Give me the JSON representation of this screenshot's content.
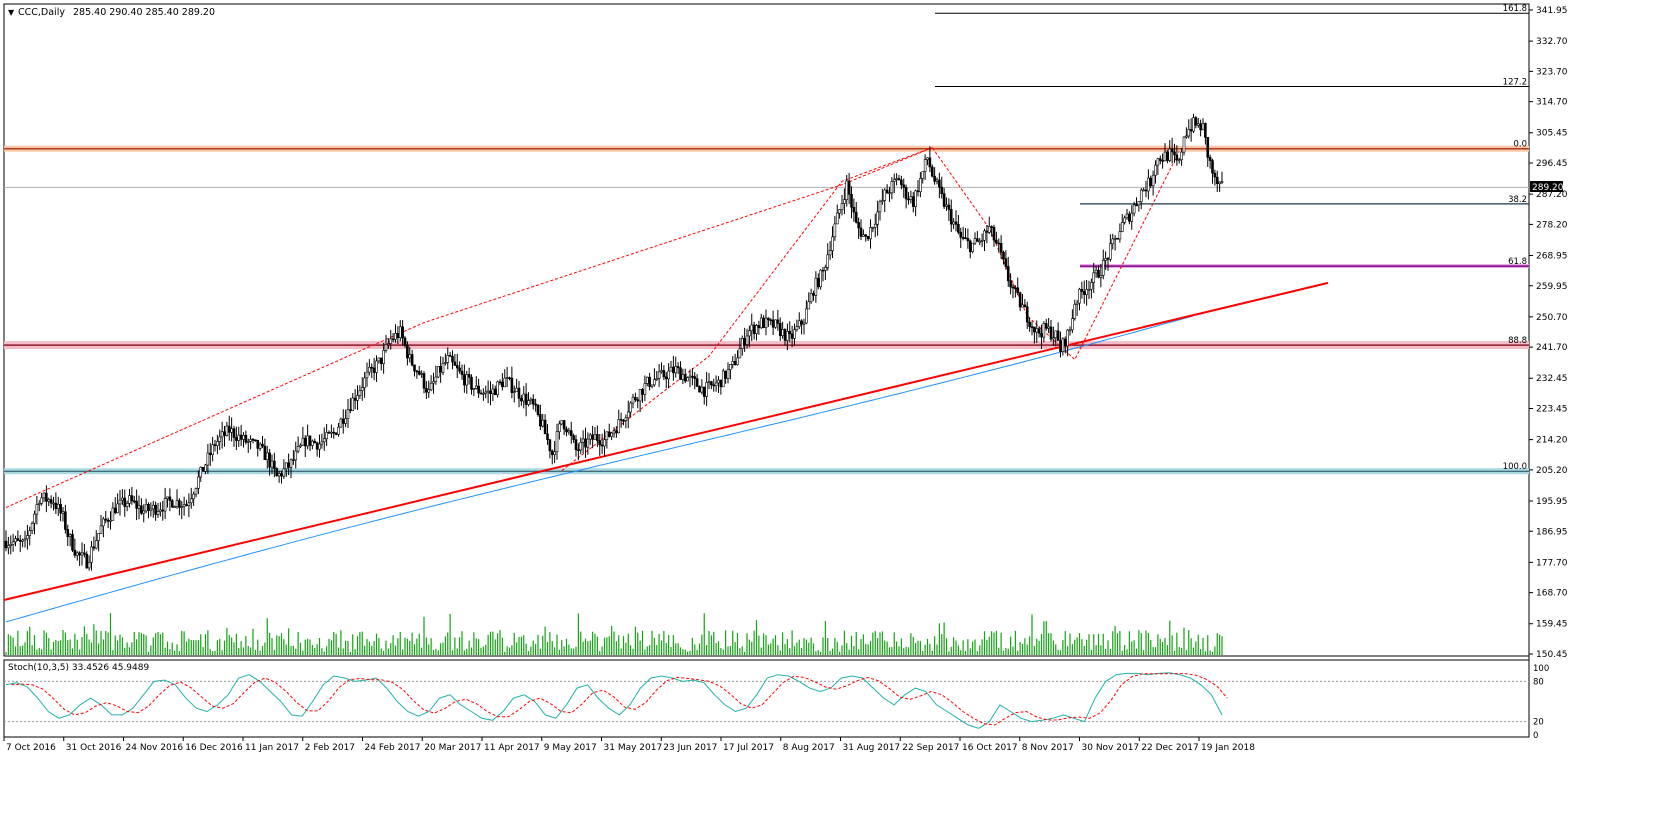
{
  "chart_data": {
    "type": "candlestick",
    "title": "CCC,Daily",
    "ohlc_header": "285.40 290.40 285.40 289.20",
    "current_price": "289.20",
    "ylim": [
      150.45,
      344.0
    ],
    "y_ticks": [
      "341.95",
      "332.70",
      "323.70",
      "314.70",
      "305.45",
      "296.45",
      "287.20",
      "278.20",
      "268.95",
      "259.95",
      "250.70",
      "241.70",
      "232.45",
      "223.45",
      "214.20",
      "205.20",
      "195.95",
      "186.95",
      "177.70",
      "168.70",
      "159.45",
      "150.45"
    ],
    "x_labels": [
      "7 Oct 2016",
      "31 Oct 2016",
      "24 Nov 2016",
      "16 Dec 2016",
      "11 Jan 2017",
      "2 Feb 2017",
      "24 Feb 2017",
      "20 Mar 2017",
      "11 Apr 2017",
      "9 May 2017",
      "31 May 2017",
      "23 Jun 2017",
      "17 Jul 2017",
      "8 Aug 2017",
      "31 Aug 2017",
      "22 Sep 2017",
      "16 Oct 2017",
      "8 Nov 2017",
      "30 Nov 2017",
      "22 Dec 2017",
      "19 Jan 2018"
    ],
    "fib_levels": [
      {
        "label": "161.8",
        "price": 341.0
      },
      {
        "label": "127.2",
        "price": 319.2
      },
      {
        "label": "0.0",
        "price": 300.7
      },
      {
        "label": "38.2",
        "price": 284.3
      },
      {
        "label": "61.8",
        "price": 265.8
      },
      {
        "label": "88.8",
        "price": 242.3
      },
      {
        "label": "100.0",
        "price": 204.8
      }
    ],
    "path_prices": [
      [
        0,
        184
      ],
      [
        8,
        183
      ],
      [
        14,
        197
      ],
      [
        20,
        196
      ],
      [
        24,
        191
      ],
      [
        26,
        186
      ],
      [
        30,
        180
      ],
      [
        34,
        178
      ],
      [
        40,
        188
      ],
      [
        46,
        194
      ],
      [
        52,
        196
      ],
      [
        58,
        193
      ],
      [
        64,
        194
      ],
      [
        70,
        196
      ],
      [
        76,
        195
      ],
      [
        82,
        204
      ],
      [
        88,
        213
      ],
      [
        94,
        217
      ],
      [
        100,
        214
      ],
      [
        106,
        212
      ],
      [
        110,
        209
      ],
      [
        114,
        203
      ],
      [
        120,
        207
      ],
      [
        126,
        214
      ],
      [
        132,
        213
      ],
      [
        138,
        216
      ],
      [
        146,
        226
      ],
      [
        152,
        233
      ],
      [
        158,
        238
      ],
      [
        162,
        244
      ],
      [
        166,
        246
      ],
      [
        170,
        238
      ],
      [
        174,
        234
      ],
      [
        178,
        228
      ],
      [
        182,
        234
      ],
      [
        186,
        238
      ],
      [
        192,
        233
      ],
      [
        198,
        229
      ],
      [
        204,
        228
      ],
      [
        210,
        232
      ],
      [
        216,
        228
      ],
      [
        222,
        224
      ],
      [
        226,
        218
      ],
      [
        230,
        210
      ],
      [
        234,
        220
      ],
      [
        236,
        218
      ],
      [
        240,
        211
      ],
      [
        244,
        213
      ],
      [
        248,
        215
      ],
      [
        252,
        214
      ],
      [
        258,
        219
      ],
      [
        264,
        226
      ],
      [
        270,
        231
      ],
      [
        276,
        233
      ],
      [
        282,
        235
      ],
      [
        288,
        232
      ],
      [
        294,
        229
      ],
      [
        300,
        231
      ],
      [
        306,
        236
      ],
      [
        312,
        246
      ],
      [
        318,
        249
      ],
      [
        324,
        248
      ],
      [
        330,
        244
      ],
      [
        336,
        250
      ],
      [
        340,
        259
      ],
      [
        344,
        264
      ],
      [
        348,
        275
      ],
      [
        352,
        285
      ],
      [
        354,
        290
      ],
      [
        358,
        278
      ],
      [
        362,
        274
      ],
      [
        366,
        280
      ],
      [
        370,
        287
      ],
      [
        376,
        292
      ],
      [
        378,
        288
      ],
      [
        382,
        285
      ],
      [
        388,
        298
      ],
      [
        390,
        293
      ],
      [
        394,
        286
      ],
      [
        398,
        280
      ],
      [
        402,
        274
      ],
      [
        406,
        272
      ],
      [
        410,
        273
      ],
      [
        414,
        277
      ],
      [
        418,
        271
      ],
      [
        422,
        262
      ],
      [
        426,
        256
      ],
      [
        430,
        251
      ],
      [
        434,
        246
      ],
      [
        438,
        247
      ],
      [
        442,
        245
      ],
      [
        444,
        241
      ],
      [
        448,
        247
      ],
      [
        450,
        255
      ],
      [
        454,
        259
      ],
      [
        458,
        262
      ],
      [
        462,
        266
      ],
      [
        466,
        272
      ],
      [
        470,
        278
      ],
      [
        474,
        282
      ],
      [
        478,
        288
      ],
      [
        482,
        291
      ],
      [
        484,
        297
      ],
      [
        486,
        298
      ],
      [
        490,
        299
      ],
      [
        494,
        296
      ],
      [
        496,
        305
      ],
      [
        500,
        308
      ],
      [
        504,
        307
      ],
      [
        506,
        299
      ],
      [
        509,
        291
      ],
      [
        512,
        289
      ]
    ]
  },
  "indicator": {
    "label": "Stoch(10,3,5) 33.4526 45.9489",
    "ticks": [
      "100",
      "80",
      "20",
      "0"
    ],
    "k": [
      75,
      78,
      72,
      55,
      35,
      25,
      30,
      45,
      55,
      45,
      30,
      30,
      40,
      60,
      80,
      82,
      75,
      55,
      40,
      35,
      45,
      60,
      85,
      90,
      80,
      65,
      50,
      30,
      28,
      50,
      75,
      88,
      85,
      80,
      82,
      85,
      70,
      50,
      35,
      28,
      35,
      55,
      60,
      45,
      35,
      25,
      22,
      35,
      55,
      60,
      50,
      30,
      25,
      45,
      70,
      75,
      55,
      40,
      30,
      45,
      70,
      85,
      88,
      85,
      80,
      82,
      78,
      60,
      45,
      35,
      40,
      60,
      85,
      90,
      88,
      80,
      70,
      65,
      70,
      85,
      88,
      85,
      70,
      55,
      45,
      60,
      70,
      65,
      45,
      35,
      25,
      15,
      10,
      20,
      45,
      35,
      25,
      20,
      22,
      25,
      30,
      25,
      20,
      55,
      80,
      90,
      92,
      92,
      90,
      92,
      93,
      90,
      85,
      75,
      60,
      30
    ]
  }
}
